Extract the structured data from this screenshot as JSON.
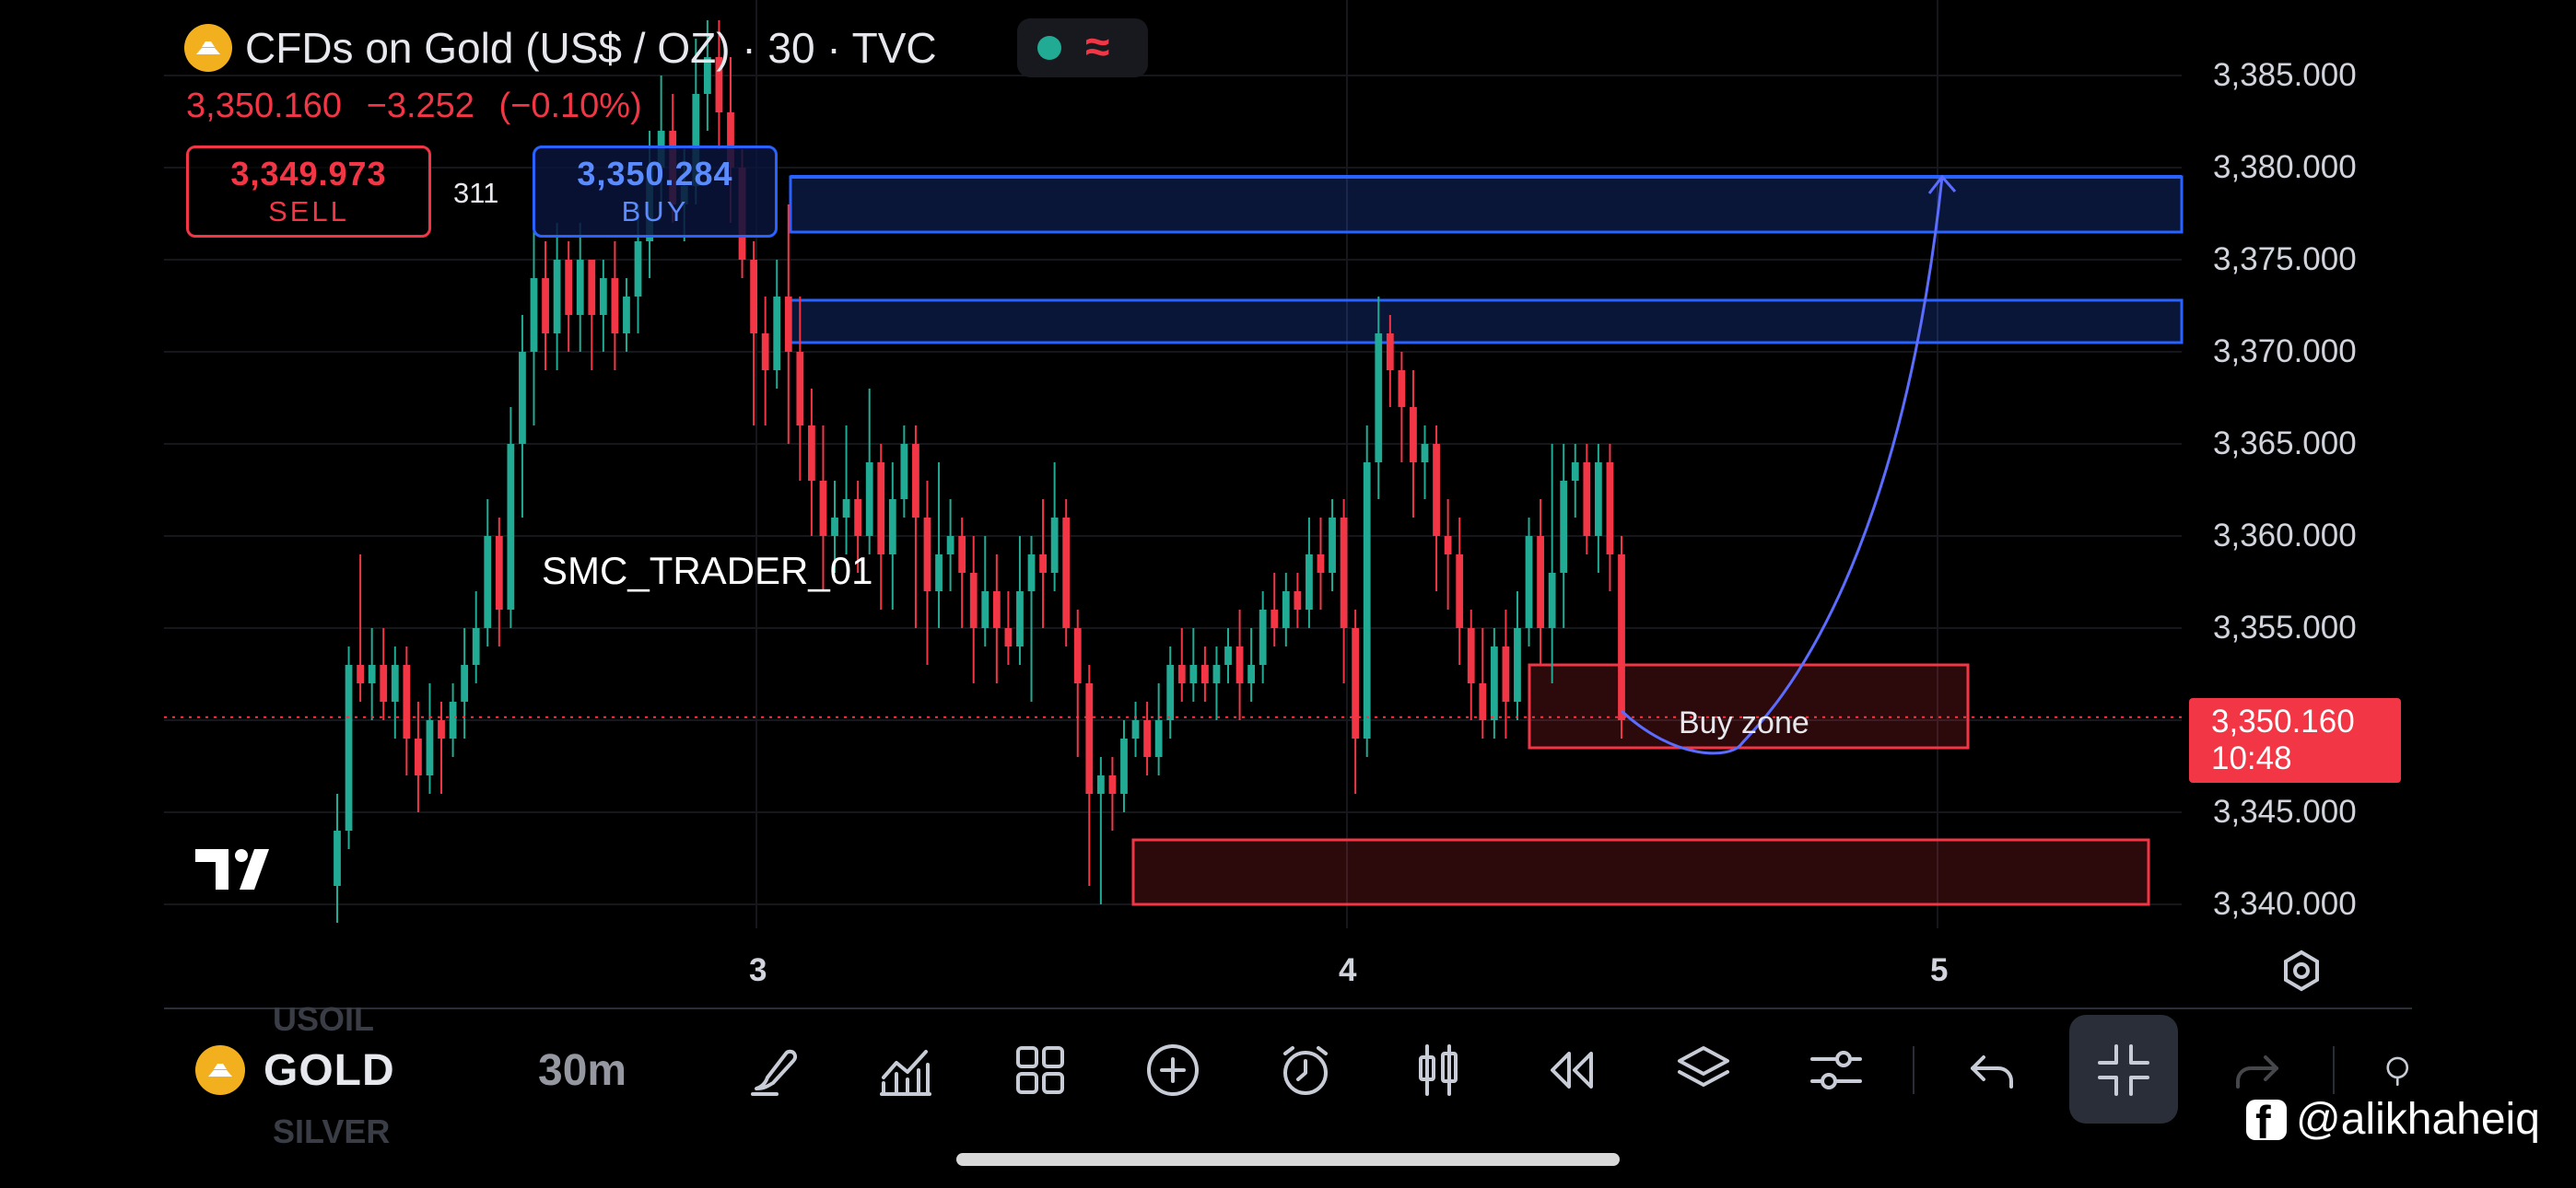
{
  "header": {
    "symbol_title": "CFDs on Gold (US$ / OZ) · 30 · TVC",
    "last_price": "3,350.160",
    "change": "−3.252",
    "change_pct": "(−0.10%)",
    "status_wave": "≈"
  },
  "trade": {
    "sell_price": "3,349.973",
    "sell_label": "SELL",
    "buy_price": "3,350.284",
    "buy_label": "BUY",
    "spread": "311"
  },
  "annotations": {
    "watermark": "SMC_TRADER_01",
    "buy_zone": "Buy zone"
  },
  "price_axis": {
    "labels": [
      "3,385.000",
      "3,380.000",
      "3,375.000",
      "3,370.000",
      "3,365.000",
      "3,360.000",
      "3,355.000",
      "3,350.000",
      "3,345.000",
      "3,340.000"
    ],
    "current_price": "3,350.160",
    "countdown": "10:48"
  },
  "time_axis": {
    "labels": [
      "3",
      "4",
      "5"
    ]
  },
  "bottom_bar": {
    "symbol": "GOLD",
    "interval": "30m",
    "ghost_above": "USOIL",
    "ghost_below": "SILVER"
  },
  "credit": {
    "handle": "@alikhaheiq"
  },
  "colors": {
    "up": "#22ab94",
    "down": "#f23645",
    "zone_blue": "#2962ff",
    "zone_red": "#f23645",
    "background": "#000000"
  },
  "chart_data": {
    "type": "candlestick",
    "timeframe": "30m",
    "ylim": [
      3338,
      3388
    ],
    "zones": [
      {
        "name": "supply-upper",
        "from": 3376.5,
        "to": 3379.5,
        "color": "blue"
      },
      {
        "name": "supply-lower",
        "from": 3370.5,
        "to": 3372.8,
        "color": "blue"
      },
      {
        "name": "buy-zone",
        "from": 3348.5,
        "to": 3353.0,
        "color": "red"
      },
      {
        "name": "demand-lower",
        "from": 3340.0,
        "to": 3343.5,
        "color": "red"
      }
    ],
    "projection": {
      "start": [
        4.46,
        3350.5
      ],
      "low": [
        4.68,
        3348.7
      ],
      "end": [
        5.0,
        3379.5
      ]
    },
    "candles": [
      [
        3341,
        3344,
        3339,
        3346
      ],
      [
        3344,
        3353,
        3343,
        3354
      ],
      [
        3353,
        3352,
        3351,
        3359
      ],
      [
        3352,
        3353,
        3350,
        3355
      ],
      [
        3353,
        3351,
        3350,
        3355
      ],
      [
        3351,
        3353,
        3349,
        3354
      ],
      [
        3353,
        3349,
        3347,
        3354
      ],
      [
        3349,
        3347,
        3345,
        3351
      ],
      [
        3347,
        3350,
        3346,
        3352
      ],
      [
        3350,
        3349,
        3346,
        3351
      ],
      [
        3349,
        3351,
        3348,
        3352
      ],
      [
        3351,
        3353,
        3349,
        3355
      ],
      [
        3353,
        3355,
        3352,
        3357
      ],
      [
        3355,
        3360,
        3354,
        3362
      ],
      [
        3360,
        3356,
        3354,
        3361
      ],
      [
        3356,
        3365,
        3355,
        3367
      ],
      [
        3365,
        3370,
        3361,
        3372
      ],
      [
        3370,
        3374,
        3366,
        3377
      ],
      [
        3374,
        3371,
        3369,
        3376
      ],
      [
        3371,
        3375,
        3369,
        3377
      ],
      [
        3375,
        3372,
        3370,
        3376
      ],
      [
        3372,
        3375,
        3370,
        3377
      ],
      [
        3375,
        3372,
        3369,
        3375
      ],
      [
        3372,
        3374,
        3370,
        3375
      ],
      [
        3374,
        3371,
        3369,
        3376
      ],
      [
        3371,
        3373,
        3370,
        3374
      ],
      [
        3373,
        3376,
        3371,
        3378
      ],
      [
        3376,
        3380,
        3374,
        3382
      ],
      [
        3380,
        3382,
        3378,
        3385
      ],
      [
        3382,
        3378,
        3377,
        3384
      ],
      [
        3378,
        3379,
        3376,
        3381
      ],
      [
        3379,
        3384,
        3378,
        3387
      ],
      [
        3384,
        3386,
        3382,
        3388
      ],
      [
        3386,
        3383,
        3381,
        3388
      ],
      [
        3383,
        3380,
        3377,
        3386
      ],
      [
        3380,
        3375,
        3374,
        3381
      ],
      [
        3375,
        3371,
        3366,
        3376
      ],
      [
        3371,
        3369,
        3366,
        3373
      ],
      [
        3369,
        3373,
        3368,
        3375
      ],
      [
        3373,
        3370,
        3365,
        3378
      ],
      [
        3370,
        3366,
        3363,
        3373
      ],
      [
        3366,
        3363,
        3360,
        3368
      ],
      [
        3363,
        3360,
        3357,
        3366
      ],
      [
        3360,
        3361,
        3358,
        3363
      ],
      [
        3361,
        3362,
        3359,
        3366
      ],
      [
        3362,
        3360,
        3358,
        3363
      ],
      [
        3360,
        3364,
        3359,
        3368
      ],
      [
        3364,
        3359,
        3356,
        3365
      ],
      [
        3359,
        3362,
        3356,
        3364
      ],
      [
        3362,
        3365,
        3361,
        3366
      ],
      [
        3365,
        3361,
        3355,
        3366
      ],
      [
        3361,
        3357,
        3353,
        3363
      ],
      [
        3357,
        3359,
        3355,
        3364
      ],
      [
        3359,
        3360,
        3357,
        3362
      ],
      [
        3360,
        3358,
        3355,
        3361
      ],
      [
        3358,
        3355,
        3352,
        3360
      ],
      [
        3355,
        3357,
        3354,
        3360
      ],
      [
        3357,
        3355,
        3352,
        3359
      ],
      [
        3355,
        3354,
        3353,
        3357
      ],
      [
        3354,
        3357,
        3353,
        3360
      ],
      [
        3357,
        3359,
        3351,
        3360
      ],
      [
        3359,
        3358,
        3355,
        3362
      ],
      [
        3358,
        3361,
        3357,
        3364
      ],
      [
        3361,
        3355,
        3354,
        3362
      ],
      [
        3355,
        3352,
        3348,
        3356
      ],
      [
        3352,
        3346,
        3341,
        3353
      ],
      [
        3346,
        3347,
        3340,
        3348
      ],
      [
        3347,
        3346,
        3344,
        3348
      ],
      [
        3346,
        3349,
        3345,
        3350
      ],
      [
        3349,
        3350,
        3348,
        3351
      ],
      [
        3350,
        3348,
        3347,
        3351
      ],
      [
        3348,
        3350,
        3347,
        3352
      ],
      [
        3350,
        3353,
        3349,
        3354
      ],
      [
        3353,
        3352,
        3351,
        3355
      ],
      [
        3352,
        3353,
        3351,
        3355
      ],
      [
        3353,
        3352,
        3351,
        3354
      ],
      [
        3352,
        3353,
        3350,
        3354
      ],
      [
        3353,
        3354,
        3352,
        3355
      ],
      [
        3354,
        3352,
        3350,
        3356
      ],
      [
        3352,
        3353,
        3351,
        3355
      ],
      [
        3353,
        3356,
        3352,
        3357
      ],
      [
        3356,
        3355,
        3354,
        3358
      ],
      [
        3355,
        3357,
        3354,
        3358
      ],
      [
        3357,
        3356,
        3355,
        3358
      ],
      [
        3356,
        3359,
        3355,
        3361
      ],
      [
        3359,
        3358,
        3356,
        3361
      ],
      [
        3358,
        3361,
        3357,
        3362
      ],
      [
        3361,
        3355,
        3352,
        3362
      ],
      [
        3355,
        3349,
        3346,
        3356
      ],
      [
        3349,
        3364,
        3348,
        3366
      ],
      [
        3364,
        3371,
        3362,
        3373
      ],
      [
        3371,
        3369,
        3367,
        3372
      ],
      [
        3369,
        3367,
        3364,
        3370
      ],
      [
        3367,
        3364,
        3361,
        3369
      ],
      [
        3364,
        3365,
        3362,
        3366
      ],
      [
        3365,
        3360,
        3357,
        3366
      ],
      [
        3360,
        3359,
        3356,
        3362
      ],
      [
        3359,
        3355,
        3353,
        3361
      ],
      [
        3355,
        3352,
        3350,
        3356
      ],
      [
        3352,
        3350,
        3349,
        3355
      ],
      [
        3350,
        3354,
        3349,
        3355
      ],
      [
        3354,
        3351,
        3349,
        3356
      ],
      [
        3351,
        3355,
        3350,
        3357
      ],
      [
        3355,
        3360,
        3354,
        3361
      ],
      [
        3360,
        3355,
        3353,
        3362
      ],
      [
        3355,
        3358,
        3352,
        3365
      ],
      [
        3358,
        3363,
        3355,
        3365
      ],
      [
        3363,
        3364,
        3361,
        3365
      ],
      [
        3364,
        3360,
        3359,
        3365
      ],
      [
        3360,
        3364,
        3358,
        3365
      ],
      [
        3364,
        3359,
        3357,
        3365
      ],
      [
        3359,
        3350,
        3349,
        3360
      ]
    ]
  }
}
